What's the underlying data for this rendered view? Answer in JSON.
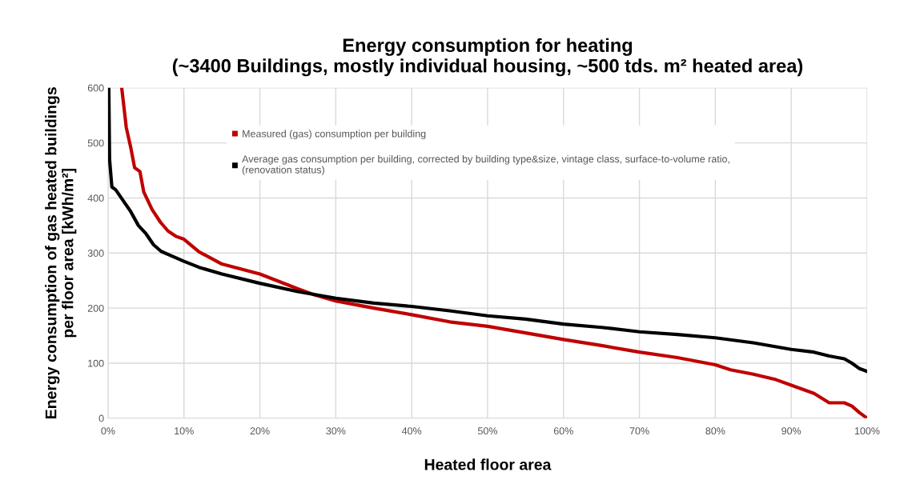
{
  "chart_data": {
    "type": "line",
    "title": "Energy consumption for heating\n(~3400 Buildings, mostly individual housing, ~500 tds. m² heated area)",
    "xlabel": "Heated floor area",
    "ylabel": "Energy consumption of gas heated buildings\nper floor area [kWh/m²]",
    "xlim": [
      0,
      100
    ],
    "ylim": [
      0,
      600
    ],
    "xticks": [
      {
        "value": 0,
        "label": "0%"
      },
      {
        "value": 10,
        "label": "10%"
      },
      {
        "value": 20,
        "label": "20%"
      },
      {
        "value": 30,
        "label": "30%"
      },
      {
        "value": 40,
        "label": "40%"
      },
      {
        "value": 50,
        "label": "50%"
      },
      {
        "value": 60,
        "label": "60%"
      },
      {
        "value": 70,
        "label": "70%"
      },
      {
        "value": 80,
        "label": "80%"
      },
      {
        "value": 90,
        "label": "90%"
      },
      {
        "value": 100,
        "label": "100%"
      }
    ],
    "yticks": [
      0,
      100,
      200,
      300,
      400,
      500,
      600
    ],
    "grid": true,
    "legend": "top",
    "marker": "none",
    "line_style": "solid",
    "series": [
      {
        "name": "Measured (gas) consumption per building",
        "color": "#c00000",
        "x": [
          1.8,
          2.4,
          3.0,
          3.5,
          4.2,
          4.7,
          5.8,
          6.9,
          7.9,
          9.0,
          10,
          12,
          15,
          20,
          25,
          27,
          30,
          35,
          40,
          45,
          50,
          55,
          60,
          65,
          70,
          75,
          80,
          82,
          85,
          88,
          90,
          93,
          95,
          97,
          98,
          99,
          100
        ],
        "values": [
          600,
          528,
          491,
          455,
          448,
          411,
          379,
          356,
          340,
          330,
          325,
          302,
          280,
          262,
          235,
          225,
          213,
          200,
          188,
          175,
          167,
          155,
          143,
          132,
          120,
          110,
          97,
          88,
          80,
          70,
          60,
          45,
          28,
          28,
          22,
          10,
          0
        ]
      },
      {
        "name": "Average gas consumption per building, corrected by building type&size, vintage class, surface-to-volume ratio,\n(renovation status)",
        "color": "#000000",
        "x": [
          0.1,
          0.2,
          0.5,
          1,
          2,
          3,
          4,
          5,
          6,
          7,
          8,
          10,
          12,
          15,
          20,
          25,
          30,
          35,
          40,
          45,
          50,
          55,
          60,
          65,
          70,
          75,
          80,
          85,
          90,
          93,
          95,
          97,
          98,
          99,
          100
        ],
        "values": [
          600,
          470,
          420,
          415,
          395,
          375,
          350,
          335,
          315,
          303,
          297,
          285,
          274,
          262,
          245,
          230,
          218,
          209,
          203,
          195,
          186,
          180,
          171,
          165,
          157,
          152,
          146,
          137,
          125,
          120,
          113,
          108,
          100,
          90,
          85
        ]
      }
    ]
  }
}
